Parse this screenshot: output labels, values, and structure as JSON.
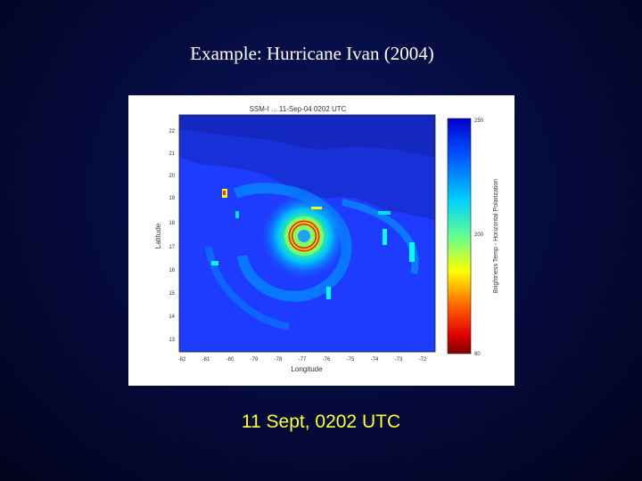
{
  "slide": {
    "title": "Example: Hurricane Ivan (2004)",
    "caption": "11 Sept, 0202 UTC"
  },
  "figure": {
    "plot_title": "SSM-I ... 11-Sep-04 0202 UTC",
    "xlabel": "Longitude",
    "ylabel": "Latitude",
    "colorbar_label": "Brightness Temp - Horizontal Polarization",
    "colorbar_ticks": [
      "250",
      "",
      "",
      "200",
      "",
      "80"
    ],
    "y_ticks": [
      "22",
      "21",
      "20",
      "19",
      "18",
      "17",
      "16",
      "15",
      "14",
      "13"
    ],
    "x_ticks": [
      "-82",
      "-81",
      "-80",
      "-79",
      "-78",
      "-77",
      "-76",
      "-75",
      "-74",
      "-73",
      "-72"
    ],
    "colormap": [
      "#7f0000",
      "#ff0000",
      "#ff8000",
      "#ffff00",
      "#80ff80",
      "#00ffff",
      "#0080ff",
      "#0000cc"
    ]
  }
}
